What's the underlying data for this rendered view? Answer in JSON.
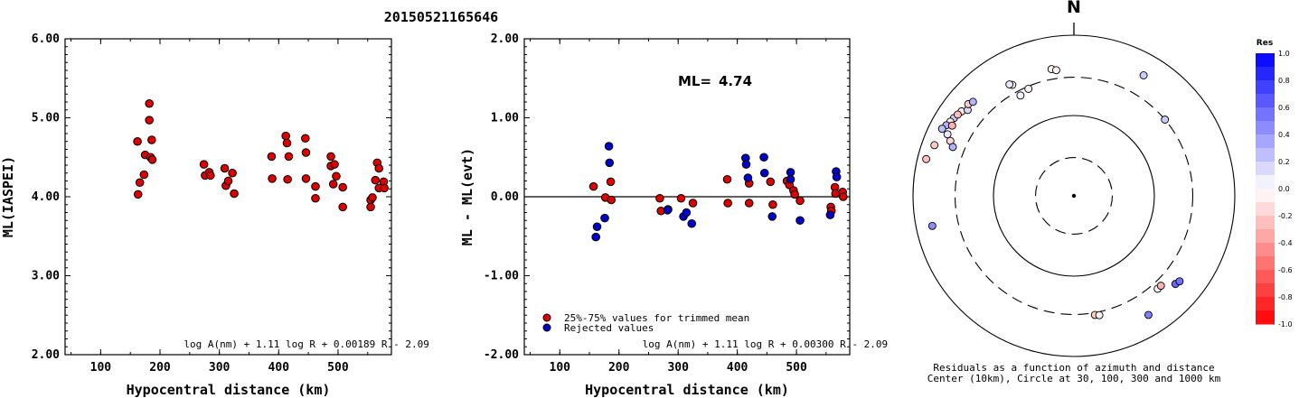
{
  "title": "20150521165646",
  "chart_data": [
    {
      "type": "scatter",
      "ylabel": "ML(IASPEI)",
      "xlabel": "Hypocentral distance (km)",
      "xlim": [
        40,
        590
      ],
      "ylim": [
        2.0,
        6.0
      ],
      "xticks": [
        "100",
        "200",
        "300",
        "400",
        "500"
      ],
      "yticks": [
        "2.00",
        "3.00",
        "4.00",
        "5.00",
        "6.00"
      ],
      "formula": "log A(nm) + 1.11 log R + 0.00189 R - 2.09",
      "points": [
        [
          162,
          4.7
        ],
        [
          163,
          4.03
        ],
        [
          166,
          4.18
        ],
        [
          173,
          4.28
        ],
        [
          175,
          4.53
        ],
        [
          182,
          5.18
        ],
        [
          182,
          4.97
        ],
        [
          184,
          4.5
        ],
        [
          186,
          4.72
        ],
        [
          187,
          4.47
        ],
        [
          274,
          4.41
        ],
        [
          276,
          4.27
        ],
        [
          283,
          4.31
        ],
        [
          285,
          4.27
        ],
        [
          309,
          4.36
        ],
        [
          311,
          4.14
        ],
        [
          315,
          4.2
        ],
        [
          322,
          4.3
        ],
        [
          325,
          4.04
        ],
        [
          388,
          4.51
        ],
        [
          389,
          4.23
        ],
        [
          412,
          4.77
        ],
        [
          414,
          4.68
        ],
        [
          415,
          4.22
        ],
        [
          417,
          4.51
        ],
        [
          445,
          4.74
        ],
        [
          446,
          4.23
        ],
        [
          446,
          4.56
        ],
        [
          462,
          4.13
        ],
        [
          462,
          3.98
        ],
        [
          488,
          4.51
        ],
        [
          488,
          4.39
        ],
        [
          492,
          4.16
        ],
        [
          494,
          4.41
        ],
        [
          497,
          4.26
        ],
        [
          508,
          3.87
        ],
        [
          508,
          4.12
        ],
        [
          555,
          3.96
        ],
        [
          555,
          3.87
        ],
        [
          558,
          3.99
        ],
        [
          563,
          4.21
        ],
        [
          566,
          4.43
        ],
        [
          569,
          4.11
        ],
        [
          569,
          4.36
        ],
        [
          577,
          4.19
        ],
        [
          578,
          4.11
        ]
      ]
    },
    {
      "type": "scatter",
      "ylabel": "ML - ML(evt)",
      "xlabel": "Hypocentral distance (km)",
      "xlim": [
        40,
        590
      ],
      "ylim": [
        -2.0,
        2.0
      ],
      "xticks": [
        "100",
        "200",
        "300",
        "400",
        "500"
      ],
      "yticks": [
        "-2.00",
        "-1.00",
        "0.00",
        "1.00",
        "2.00"
      ],
      "ml_label": "ML=",
      "ml_value": "4.74",
      "formula": "log A(nm) + 1.11 log R + 0.00300 R - 2.09",
      "legend": [
        "25%-75% values for trimmed mean",
        "Rejected values"
      ],
      "series": [
        {
          "name": "25%-75% values for trimmed mean",
          "color": "#dd0000",
          "points": [
            [
              157,
              0.13
            ],
            [
              177,
              -0.01
            ],
            [
              186,
              0.19
            ],
            [
              187,
              -0.04
            ],
            [
              269,
              -0.02
            ],
            [
              271,
              -0.18
            ],
            [
              283,
              -0.16
            ],
            [
              305,
              -0.02
            ],
            [
              325,
              -0.08
            ],
            [
              383,
              0.22
            ],
            [
              384,
              -0.08
            ],
            [
              420,
              0.17
            ],
            [
              420,
              -0.08
            ],
            [
              456,
              0.19
            ],
            [
              460,
              -0.1
            ],
            [
              484,
              0.2
            ],
            [
              488,
              0.15
            ],
            [
              495,
              0.08
            ],
            [
              497,
              0.03
            ],
            [
              506,
              -0.05
            ],
            [
              558,
              -0.13
            ],
            [
              559,
              -0.18
            ],
            [
              565,
              0.12
            ],
            [
              566,
              0.04
            ],
            [
              578,
              0.06
            ],
            [
              579,
              0.0
            ]
          ]
        },
        {
          "name": "Rejected values",
          "color": "#0000cc",
          "points": [
            [
              161,
              -0.51
            ],
            [
              163,
              -0.38
            ],
            [
              176,
              -0.27
            ],
            [
              183,
              0.64
            ],
            [
              184,
              0.43
            ],
            [
              282,
              -0.17
            ],
            [
              309,
              -0.25
            ],
            [
              314,
              -0.2
            ],
            [
              323,
              -0.34
            ],
            [
              414,
              0.49
            ],
            [
              415,
              0.41
            ],
            [
              418,
              0.24
            ],
            [
              445,
              0.5
            ],
            [
              446,
              0.3
            ],
            [
              459,
              -0.25
            ],
            [
              490,
              0.31
            ],
            [
              490,
              0.22
            ],
            [
              506,
              -0.3
            ],
            [
              557,
              -0.23
            ],
            [
              567,
              0.32
            ],
            [
              568,
              0.25
            ]
          ]
        }
      ]
    },
    {
      "type": "scatter",
      "subtype": "polar",
      "north_label": "N",
      "caption_line1": "Residuals as a function of azimuth and distance",
      "caption_line2": "Center (10km), Circle at 30, 100, 300 and 1000 km",
      "rings_km": [
        30,
        100,
        300,
        1000
      ],
      "colorbar": {
        "title": "Res",
        "ticks": [
          "1.0",
          "0.8",
          "0.6",
          "0.4",
          "0.2",
          "0.0",
          "-0.2",
          "-0.4",
          "-0.6",
          "-0.8",
          "-1.0"
        ],
        "positive_color": "#0000ff",
        "negative_color": "#ff0000"
      },
      "stations": [
        {
          "az": 332,
          "dist": 260,
          "res": 0.05
        },
        {
          "az": 331,
          "dist": 380,
          "res": 0.02
        },
        {
          "az": 337,
          "dist": 280,
          "res": -0.05
        },
        {
          "az": 330,
          "dist": 400,
          "res": 0.1
        },
        {
          "az": 30,
          "dist": 540,
          "res": 0.2
        },
        {
          "az": 290,
          "dist": 700,
          "res": -0.2
        },
        {
          "az": 284,
          "dist": 780,
          "res": -0.25
        },
        {
          "az": 258,
          "dist": 630,
          "res": 0.45
        },
        {
          "az": 138,
          "dist": 360,
          "res": 0.05
        },
        {
          "az": 136,
          "dist": 360,
          "res": -0.3
        },
        {
          "az": 170,
          "dist": 320,
          "res": -0.2
        },
        {
          "az": 168,
          "dist": 330,
          "res": -0.05
        },
        {
          "az": 131,
          "dist": 470,
          "res": 0.6
        },
        {
          "az": 129,
          "dist": 490,
          "res": 0.55
        },
        {
          "az": 148,
          "dist": 560,
          "res": 0.5
        },
        {
          "az": 350,
          "dist": 400,
          "res": -0.05
        },
        {
          "az": 352,
          "dist": 380,
          "res": -0.05
        },
        {
          "az": 50,
          "dist": 300,
          "res": 0.2
        },
        {
          "az": 303,
          "dist": 600,
          "res": 0.2
        },
        {
          "az": 301,
          "dist": 620,
          "res": -0.1
        },
        {
          "az": 307,
          "dist": 560,
          "res": -0.1
        },
        {
          "az": 309,
          "dist": 500,
          "res": 0.15
        },
        {
          "az": 305,
          "dist": 580,
          "res": -0.25
        },
        {
          "az": 311,
          "dist": 550,
          "res": -0.2
        },
        {
          "az": 313,
          "dist": 520,
          "res": 0.3
        },
        {
          "az": 299,
          "dist": 650,
          "res": 0.3
        },
        {
          "az": 297,
          "dist": 690,
          "res": 0.25
        },
        {
          "az": 300,
          "dist": 560,
          "res": -0.3
        },
        {
          "az": 296,
          "dist": 560,
          "res": 0.1
        },
        {
          "az": 294,
          "dist": 480,
          "res": -0.15
        },
        {
          "az": 292,
          "dist": 420,
          "res": 0.3
        }
      ]
    }
  ]
}
